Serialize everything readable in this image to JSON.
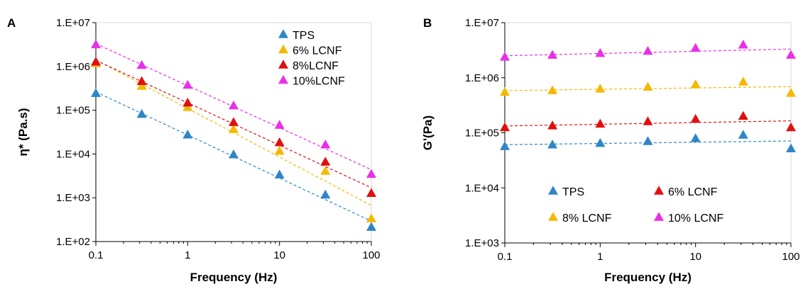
{
  "chart_data": [
    {
      "panel": "A",
      "type": "scatter",
      "title": "",
      "xlabel": "Frequency (Hz)",
      "ylabel": "η* (Pa.s)",
      "x_scale": "log",
      "y_scale": "log",
      "xlim": [
        0.1,
        100
      ],
      "ylim": [
        100,
        10000000
      ],
      "x_ticks": [
        "0.1",
        "1",
        "10",
        "100"
      ],
      "y_ticks": [
        "1.E+02",
        "1.E+03",
        "1.E+04",
        "1.E+05",
        "1.E+06",
        "1.E+07"
      ],
      "grid": false,
      "legend": "top-right",
      "trendlines": "dashed power-law fit per series",
      "x": [
        0.1,
        0.316,
        1,
        3.16,
        10,
        31.6,
        100
      ],
      "series": [
        {
          "name": "TPS",
          "color": "#2E86C8",
          "values": [
            240000,
            80000,
            27000,
            9500,
            3300,
            1150,
            210
          ]
        },
        {
          "name": "6% LCNF",
          "color": "#F5B800",
          "values": [
            1150000,
            350000,
            115000,
            36000,
            11500,
            4000,
            330
          ]
        },
        {
          "name": "8%LCNF",
          "color": "#E01010",
          "values": [
            1250000,
            450000,
            145000,
            52000,
            18000,
            6500,
            1250
          ]
        },
        {
          "name": "10%LCNF",
          "color": "#E830E8",
          "values": [
            3100000,
            1050000,
            370000,
            125000,
            45000,
            16000,
            3400
          ]
        }
      ]
    },
    {
      "panel": "B",
      "type": "scatter",
      "title": "",
      "xlabel": "Frequency (Hz)",
      "ylabel": "G'(Pa)",
      "x_scale": "log",
      "y_scale": "log",
      "xlim": [
        0.1,
        100
      ],
      "ylim": [
        1000,
        10000000
      ],
      "x_ticks": [
        "0.1",
        "1",
        "10",
        "100"
      ],
      "y_ticks": [
        "1.E+03",
        "1.E+04",
        "1.E+05",
        "1.E+06",
        "1.E+07"
      ],
      "grid": false,
      "legend": "bottom-center",
      "trendlines": "dashed power-law fit per series",
      "x": [
        0.1,
        0.316,
        1,
        3.16,
        10,
        31.6,
        100
      ],
      "series": [
        {
          "name": "TPS",
          "color": "#2E86C8",
          "values": [
            56000,
            60000,
            64000,
            69000,
            78000,
            90000,
            51000
          ]
        },
        {
          "name": "6% LCNF",
          "color": "#E01010",
          "values": [
            123000,
            133000,
            143000,
            158000,
            175000,
            198000,
            123000
          ]
        },
        {
          "name": "8% LCNF",
          "color": "#F5B800",
          "values": [
            540000,
            580000,
            620000,
            670000,
            740000,
            830000,
            520000
          ]
        },
        {
          "name": "10% LCNF",
          "color": "#E830E8",
          "values": [
            2350000,
            2550000,
            2750000,
            3000000,
            3400000,
            3900000,
            2550000
          ]
        }
      ]
    }
  ]
}
